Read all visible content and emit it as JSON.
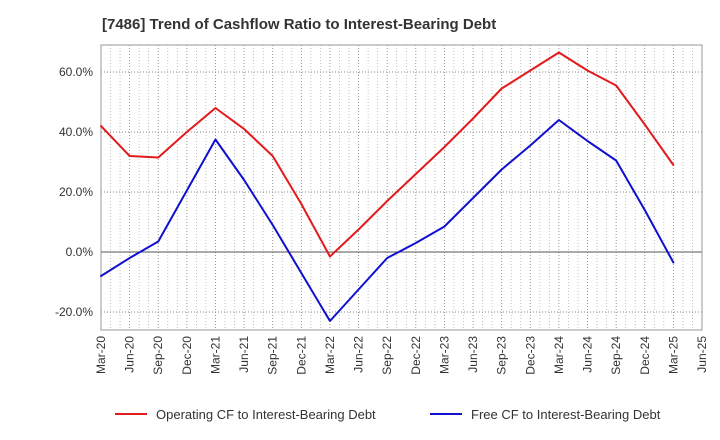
{
  "chart_data": {
    "type": "line",
    "title": "[7486]  Trend of Cashflow Ratio to Interest-Bearing Debt",
    "xlabel": "",
    "ylabel": "",
    "x": [
      "Mar-20",
      "Jun-20",
      "Sep-20",
      "Dec-20",
      "Mar-21",
      "Jun-21",
      "Sep-21",
      "Dec-21",
      "Mar-22",
      "Jun-22",
      "Sep-22",
      "Dec-22",
      "Mar-23",
      "Jun-23",
      "Sep-23",
      "Dec-23",
      "Mar-24",
      "Jun-24",
      "Sep-24",
      "Dec-24",
      "Mar-25",
      "Jun-25"
    ],
    "ylim": [
      -26,
      69
    ],
    "yticks": [
      -20,
      0,
      20,
      40,
      60
    ],
    "ytick_labels": [
      "-20.0%",
      "0.0%",
      "20.0%",
      "40.0%",
      "60.0%"
    ],
    "grid": true,
    "legend_position": "bottom",
    "series": [
      {
        "name": "Operating CF to Interest-Bearing Debt",
        "color": "#e31a1c",
        "values": [
          42,
          32,
          31.5,
          40,
          48,
          41,
          32,
          16,
          -1.5,
          7.5,
          17,
          26,
          35,
          44.5,
          54.5,
          60.5,
          66.5,
          60.5,
          55.5,
          42.5,
          29,
          null
        ]
      },
      {
        "name": "Free CF to Interest-Bearing Debt",
        "color": "#1010d0",
        "values": [
          -8,
          -2,
          3.5,
          20.5,
          37.5,
          24,
          9,
          -7,
          -23,
          -12.5,
          -2,
          3,
          8.5,
          18,
          27.5,
          35.5,
          44,
          37,
          30.5,
          14,
          -3.5,
          null
        ]
      }
    ]
  }
}
